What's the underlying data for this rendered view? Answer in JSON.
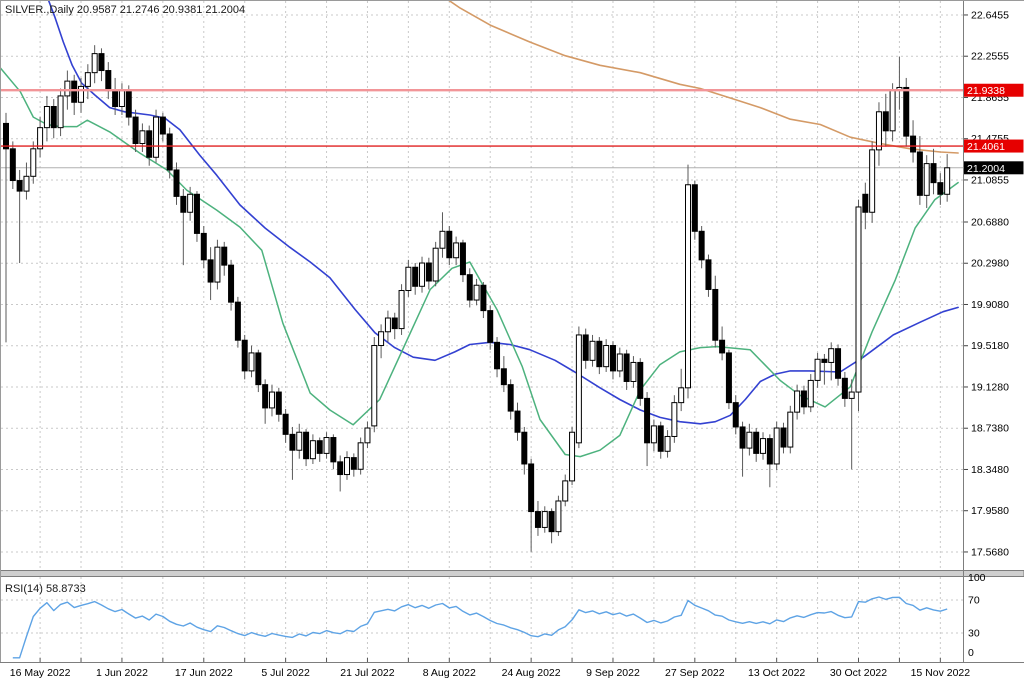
{
  "header": {
    "title": "SILVER.,Daily  20.9587 21.2746 20.9381 21.2004",
    "symbol": "SILVER.",
    "period": "Daily",
    "open": "20.9587",
    "high": "21.2746",
    "low": "20.9381",
    "close": "21.2004"
  },
  "rsi_label": "RSI(14) 58.8733",
  "colors": {
    "background": "#ffffff",
    "grid": "#c9c9c9",
    "border": "#7d7d7d",
    "bull_candle": "#ffffff",
    "bear_candle": "#000000",
    "candle_border": "#000000",
    "wick": "#5a5a5a",
    "ma_fast": "#4db27e",
    "ma_slow": "#3341d1",
    "ma_trend": "#d49a66",
    "hline_upper": "#f29598",
    "hline_lower": "#e02020",
    "price_badge_bg": "#e60000",
    "last_badge_bg": "#000000",
    "badge_text": "#ffffff",
    "last_price_line": "#b0b0b0",
    "rsi_line": "#5ea3e5",
    "axis_text": "#000000",
    "separator": "#cfcfcf"
  },
  "chart_data": {
    "type": "candlestick",
    "title": "SILVER.,Daily",
    "price_axis_labels": [
      "22.6455",
      "22.2555",
      "21.8655",
      "21.4755",
      "21.0855",
      "20.6880",
      "20.2980",
      "19.9080",
      "19.5180",
      "19.1280",
      "18.7380",
      "18.3480",
      "17.9580",
      "17.5680"
    ],
    "date_labels": [
      "16 May 2022",
      "1 Jun 2022",
      "17 Jun 2022",
      "5 Jul 2022",
      "21 Jul 2022",
      "8 Aug 2022",
      "24 Aug 2022",
      "9 Sep 2022",
      "27 Sep 2022",
      "13 Oct 2022",
      "30 Oct 2022",
      "15 Nov 2022"
    ],
    "hlines": [
      {
        "price": 21.9338,
        "label": "21.9338",
        "style": "upper"
      },
      {
        "price": 21.4061,
        "label": "21.4061",
        "style": "lower"
      }
    ],
    "last_price": {
      "price": 21.2004,
      "label": "21.2004"
    },
    "candles": [
      [
        21.62,
        21.72,
        19.55,
        21.38
      ],
      [
        21.38,
        21.45,
        21.0,
        21.08
      ],
      [
        21.08,
        21.18,
        20.3,
        20.98
      ],
      [
        20.98,
        21.25,
        20.9,
        21.12
      ],
      [
        21.12,
        21.45,
        21.05,
        21.38
      ],
      [
        21.38,
        21.68,
        21.3,
        21.58
      ],
      [
        21.58,
        21.88,
        21.45,
        21.78
      ],
      [
        21.78,
        21.85,
        21.48,
        21.58
      ],
      [
        21.58,
        21.95,
        21.5,
        21.88
      ],
      [
        21.88,
        22.12,
        21.75,
        22.02
      ],
      [
        22.02,
        22.08,
        21.7,
        21.82
      ],
      [
        21.82,
        22.05,
        21.72,
        21.97
      ],
      [
        21.97,
        22.18,
        21.85,
        22.1
      ],
      [
        22.1,
        22.36,
        22.0,
        22.28
      ],
      [
        22.28,
        22.33,
        22.02,
        22.12
      ],
      [
        22.12,
        22.2,
        21.85,
        21.93
      ],
      [
        21.93,
        22.05,
        21.7,
        21.78
      ],
      [
        21.78,
        22.0,
        21.7,
        21.93
      ],
      [
        21.93,
        21.98,
        21.6,
        21.68
      ],
      [
        21.68,
        21.75,
        21.35,
        21.43
      ],
      [
        21.43,
        21.62,
        21.35,
        21.55
      ],
      [
        21.55,
        21.6,
        21.22,
        21.3
      ],
      [
        21.3,
        21.75,
        21.25,
        21.68
      ],
      [
        21.68,
        21.72,
        21.45,
        21.52
      ],
      [
        21.52,
        21.58,
        21.1,
        21.18
      ],
      [
        21.18,
        21.25,
        20.85,
        20.93
      ],
      [
        20.93,
        21.0,
        20.28,
        20.78
      ],
      [
        20.78,
        21.02,
        20.7,
        20.95
      ],
      [
        20.95,
        20.98,
        20.5,
        20.58
      ],
      [
        20.58,
        20.65,
        20.25,
        20.33
      ],
      [
        20.33,
        20.45,
        19.95,
        20.12
      ],
      [
        20.12,
        20.52,
        20.05,
        20.45
      ],
      [
        20.45,
        20.5,
        20.18,
        20.28
      ],
      [
        20.28,
        20.33,
        19.85,
        19.93
      ],
      [
        19.93,
        19.98,
        19.5,
        19.57
      ],
      [
        19.57,
        19.62,
        19.2,
        19.28
      ],
      [
        19.28,
        19.52,
        19.22,
        19.45
      ],
      [
        19.45,
        19.48,
        19.08,
        19.15
      ],
      [
        19.15,
        19.2,
        18.78,
        18.93
      ],
      [
        18.93,
        19.15,
        18.85,
        19.08
      ],
      [
        19.08,
        19.12,
        18.8,
        18.87
      ],
      [
        18.87,
        18.92,
        18.6,
        18.68
      ],
      [
        18.68,
        18.75,
        18.25,
        18.53
      ],
      [
        18.53,
        18.78,
        18.45,
        18.7
      ],
      [
        18.7,
        18.73,
        18.38,
        18.45
      ],
      [
        18.45,
        18.68,
        18.4,
        18.62
      ],
      [
        18.62,
        18.65,
        18.42,
        18.5
      ],
      [
        18.5,
        18.7,
        18.45,
        18.65
      ],
      [
        18.65,
        18.68,
        18.35,
        18.42
      ],
      [
        18.42,
        18.48,
        18.14,
        18.3
      ],
      [
        18.3,
        18.52,
        18.25,
        18.46
      ],
      [
        18.46,
        18.5,
        18.28,
        18.35
      ],
      [
        18.35,
        18.65,
        18.3,
        18.6
      ],
      [
        18.6,
        18.8,
        18.55,
        18.74
      ],
      [
        18.76,
        19.6,
        18.7,
        19.52
      ],
      [
        19.52,
        19.72,
        19.4,
        19.65
      ],
      [
        19.65,
        19.85,
        19.55,
        19.78
      ],
      [
        19.78,
        19.83,
        19.58,
        19.68
      ],
      [
        19.68,
        20.1,
        19.62,
        20.04
      ],
      [
        20.04,
        20.33,
        19.98,
        20.26
      ],
      [
        20.26,
        20.3,
        20.0,
        20.08
      ],
      [
        20.08,
        20.36,
        20.02,
        20.3
      ],
      [
        20.3,
        20.35,
        20.05,
        20.13
      ],
      [
        20.13,
        20.5,
        20.08,
        20.44
      ],
      [
        20.44,
        20.78,
        20.35,
        20.6
      ],
      [
        20.6,
        20.65,
        20.28,
        20.35
      ],
      [
        20.35,
        20.55,
        20.28,
        20.49
      ],
      [
        20.49,
        20.52,
        20.12,
        20.19
      ],
      [
        20.19,
        20.25,
        19.88,
        19.95
      ],
      [
        19.95,
        20.15,
        19.9,
        20.09
      ],
      [
        20.09,
        20.12,
        19.78,
        19.85
      ],
      [
        19.85,
        19.9,
        19.48,
        19.55
      ],
      [
        19.55,
        19.6,
        19.22,
        19.3
      ],
      [
        19.3,
        19.42,
        19.08,
        19.15
      ],
      [
        19.15,
        19.2,
        18.82,
        18.9
      ],
      [
        18.9,
        18.98,
        18.62,
        18.7
      ],
      [
        18.7,
        18.75,
        18.3,
        18.4
      ],
      [
        18.4,
        18.45,
        17.57,
        17.95
      ],
      [
        17.95,
        18.05,
        17.72,
        17.8
      ],
      [
        17.8,
        18.0,
        17.75,
        17.95
      ],
      [
        17.95,
        17.98,
        17.65,
        17.76
      ],
      [
        17.76,
        18.1,
        17.72,
        18.05
      ],
      [
        18.05,
        18.3,
        18.0,
        18.24
      ],
      [
        18.24,
        18.75,
        18.2,
        18.7
      ],
      [
        18.6,
        19.7,
        18.55,
        19.62
      ],
      [
        19.62,
        19.68,
        19.3,
        19.38
      ],
      [
        19.38,
        19.62,
        19.32,
        19.56
      ],
      [
        19.56,
        19.6,
        19.25,
        19.32
      ],
      [
        19.32,
        19.58,
        19.27,
        19.52
      ],
      [
        19.52,
        19.56,
        19.2,
        19.28
      ],
      [
        19.28,
        19.5,
        19.22,
        19.44
      ],
      [
        19.44,
        19.48,
        19.1,
        19.18
      ],
      [
        19.18,
        19.42,
        19.12,
        19.36
      ],
      [
        19.36,
        19.4,
        18.95,
        19.02
      ],
      [
        19.02,
        19.08,
        18.38,
        18.6
      ],
      [
        18.6,
        18.82,
        18.52,
        18.76
      ],
      [
        18.76,
        18.8,
        18.45,
        18.52
      ],
      [
        18.52,
        18.72,
        18.46,
        18.66
      ],
      [
        18.66,
        19.05,
        18.6,
        18.98
      ],
      [
        18.98,
        19.3,
        18.9,
        19.12
      ],
      [
        19.12,
        21.23,
        19.02,
        21.04
      ],
      [
        21.04,
        21.08,
        20.52,
        20.6
      ],
      [
        20.6,
        20.65,
        20.25,
        20.33
      ],
      [
        20.33,
        20.38,
        19.98,
        20.05
      ],
      [
        20.05,
        20.18,
        19.5,
        19.57
      ],
      [
        19.57,
        19.7,
        19.38,
        19.45
      ],
      [
        19.45,
        19.48,
        18.92,
        18.98
      ],
      [
        18.98,
        19.05,
        18.68,
        18.75
      ],
      [
        18.75,
        18.8,
        18.28,
        18.55
      ],
      [
        18.55,
        18.78,
        18.48,
        18.7
      ],
      [
        18.7,
        18.74,
        18.42,
        18.5
      ],
      [
        18.5,
        18.7,
        18.44,
        18.64
      ],
      [
        18.64,
        18.68,
        18.18,
        18.4
      ],
      [
        18.4,
        18.8,
        18.34,
        18.74
      ],
      [
        18.74,
        18.79,
        18.5,
        18.56
      ],
      [
        18.56,
        18.95,
        18.5,
        18.89
      ],
      [
        18.89,
        19.15,
        18.82,
        19.09
      ],
      [
        19.09,
        19.14,
        18.87,
        18.94
      ],
      [
        18.94,
        19.25,
        18.89,
        19.19
      ],
      [
        19.19,
        19.45,
        19.12,
        19.39
      ],
      [
        19.39,
        19.44,
        19.15,
        19.36
      ],
      [
        19.36,
        19.55,
        19.19,
        19.49
      ],
      [
        19.49,
        19.53,
        19.14,
        19.21
      ],
      [
        19.21,
        19.27,
        18.94,
        19.02
      ],
      [
        19.02,
        19.2,
        18.35,
        19.08
      ],
      [
        19.08,
        20.9,
        18.9,
        20.83
      ],
      [
        20.95,
        21.06,
        20.62,
        20.78
      ],
      [
        20.78,
        21.45,
        20.68,
        21.37
      ],
      [
        21.37,
        21.82,
        21.22,
        21.73
      ],
      [
        21.73,
        21.9,
        21.4,
        21.55
      ],
      [
        21.55,
        22.0,
        21.45,
        21.94
      ],
      [
        21.94,
        22.25,
        21.75,
        21.96
      ],
      [
        21.96,
        22.05,
        21.4,
        21.5
      ],
      [
        21.5,
        21.65,
        21.25,
        21.35
      ],
      [
        21.35,
        21.5,
        20.85,
        20.94
      ],
      [
        20.94,
        21.32,
        20.82,
        21.24
      ],
      [
        21.24,
        21.38,
        20.95,
        21.06
      ],
      [
        21.06,
        21.15,
        20.85,
        20.95
      ],
      [
        20.95,
        21.33,
        20.88,
        21.2004
      ]
    ],
    "moving_averages": {
      "fast": [
        [
          -0.9,
          22.15
        ],
        [
          2.1,
          21.92
        ],
        [
          4,
          21.68
        ],
        [
          6,
          21.61
        ],
        [
          7.9,
          21.59
        ],
        [
          10.4,
          21.59
        ],
        [
          11.9,
          21.65
        ],
        [
          15.2,
          21.54
        ],
        [
          19.6,
          21.34
        ],
        [
          23.6,
          21.18
        ],
        [
          26.5,
          20.99
        ],
        [
          30.9,
          20.8
        ],
        [
          34.3,
          20.64
        ],
        [
          37.5,
          20.42
        ],
        [
          40.6,
          19.73
        ],
        [
          44.6,
          19.07
        ],
        [
          47.5,
          18.91
        ],
        [
          50.9,
          18.77
        ],
        [
          54.8,
          19.01
        ],
        [
          58.5,
          19.53
        ],
        [
          62.2,
          20.05
        ],
        [
          65.4,
          20.25
        ],
        [
          68,
          20.31
        ],
        [
          72,
          19.86
        ],
        [
          75.7,
          19.32
        ],
        [
          78.3,
          18.82
        ],
        [
          82,
          18.49
        ],
        [
          84.2,
          18.47
        ],
        [
          87.1,
          18.53
        ],
        [
          90,
          18.67
        ],
        [
          93,
          19.1
        ],
        [
          95.9,
          19.34
        ],
        [
          98.8,
          19.46
        ],
        [
          101.8,
          19.5
        ],
        [
          104.3,
          19.51
        ],
        [
          109.1,
          19.48
        ],
        [
          113.5,
          19.19
        ],
        [
          116.4,
          19.05
        ],
        [
          120.1,
          18.94
        ],
        [
          123.8,
          19.13
        ],
        [
          127,
          19.65
        ],
        [
          130.4,
          20.14
        ],
        [
          133.3,
          20.63
        ],
        [
          136.2,
          20.9
        ],
        [
          139.6,
          21.06
        ]
      ],
      "slow": [
        [
          6.2,
          22.79
        ],
        [
          7.2,
          22.62
        ],
        [
          8.4,
          22.39
        ],
        [
          9.7,
          22.17
        ],
        [
          11.1,
          22.0
        ],
        [
          13,
          21.89
        ],
        [
          15.2,
          21.77
        ],
        [
          17.4,
          21.73
        ],
        [
          21.1,
          21.7
        ],
        [
          23.3,
          21.67
        ],
        [
          25.5,
          21.56
        ],
        [
          28.4,
          21.32
        ],
        [
          30.9,
          21.13
        ],
        [
          34.3,
          20.85
        ],
        [
          38,
          20.63
        ],
        [
          41.6,
          20.45
        ],
        [
          44.6,
          20.31
        ],
        [
          47.5,
          20.16
        ],
        [
          51.2,
          19.86
        ],
        [
          54.1,
          19.64
        ],
        [
          57,
          19.5
        ],
        [
          59.7,
          19.41
        ],
        [
          62.9,
          19.38
        ],
        [
          65.8,
          19.46
        ],
        [
          68,
          19.53
        ],
        [
          71,
          19.55
        ],
        [
          73.9,
          19.53
        ],
        [
          76.8,
          19.48
        ],
        [
          80.5,
          19.38
        ],
        [
          83.4,
          19.27
        ],
        [
          87.1,
          19.12
        ],
        [
          90,
          19.01
        ],
        [
          93,
          18.91
        ],
        [
          95.9,
          18.84
        ],
        [
          98.8,
          18.8
        ],
        [
          101.8,
          18.78
        ],
        [
          104,
          18.8
        ],
        [
          106.2,
          18.86
        ],
        [
          108.4,
          19.01
        ],
        [
          110.6,
          19.18
        ],
        [
          112.8,
          19.25
        ],
        [
          115,
          19.28
        ],
        [
          117.9,
          19.28
        ],
        [
          122.3,
          19.27
        ],
        [
          125.7,
          19.41
        ],
        [
          130.1,
          19.62
        ],
        [
          134,
          19.74
        ],
        [
          137.4,
          19.84
        ],
        [
          139.6,
          19.88
        ]
      ],
      "trend": [
        [
          64.8,
          22.79
        ],
        [
          66.6,
          22.71
        ],
        [
          71,
          22.55
        ],
        [
          76.8,
          22.39
        ],
        [
          82,
          22.26
        ],
        [
          87.1,
          22.17
        ],
        [
          93,
          22.1
        ],
        [
          98.8,
          21.99
        ],
        [
          101.8,
          21.95
        ],
        [
          106.2,
          21.86
        ],
        [
          110.6,
          21.77
        ],
        [
          115,
          21.66
        ],
        [
          119.4,
          21.61
        ],
        [
          123.8,
          21.49
        ],
        [
          128.2,
          21.43
        ],
        [
          132.6,
          21.38
        ],
        [
          137,
          21.35
        ],
        [
          139.6,
          21.34
        ]
      ]
    },
    "rsi": {
      "name": "RSI",
      "period": 14,
      "value": "58.8733",
      "axis_labels": [
        "100",
        "70",
        "30",
        "0"
      ],
      "overbought": 70,
      "oversold": 30
    }
  }
}
